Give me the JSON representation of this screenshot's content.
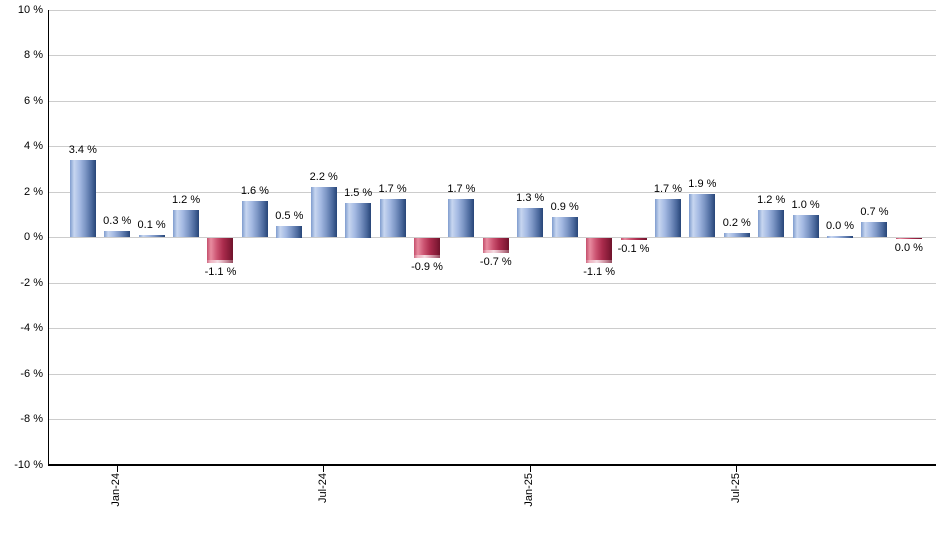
{
  "chart_data": {
    "type": "bar",
    "title": "",
    "xlabel": "",
    "ylabel": "",
    "ylim": [
      -10,
      10
    ],
    "grid": true,
    "legend": "none",
    "y_ticks": [
      {
        "value": 10,
        "label": "10 %"
      },
      {
        "value": 8,
        "label": "8 %"
      },
      {
        "value": 6,
        "label": "6 %"
      },
      {
        "value": 4,
        "label": "4 %"
      },
      {
        "value": 2,
        "label": "2 %"
      },
      {
        "value": 0,
        "label": "0 %"
      },
      {
        "value": -2,
        "label": "-2 %"
      },
      {
        "value": -4,
        "label": "-4 %"
      },
      {
        "value": -6,
        "label": "-6 %"
      },
      {
        "value": -8,
        "label": "-8 %"
      },
      {
        "value": -10,
        "label": "-10 %"
      }
    ],
    "x_axis_ticks": [
      {
        "bar_index": 1,
        "label": "Jan-24"
      },
      {
        "bar_index": 7,
        "label": "Jul-24"
      },
      {
        "bar_index": 13,
        "label": "Jan-25"
      },
      {
        "bar_index": 19,
        "label": "Jul-25"
      }
    ],
    "bars": [
      {
        "value": 3.4,
        "label": "3.4 %",
        "sign": "positive"
      },
      {
        "value": 0.3,
        "label": "0.3 %",
        "sign": "positive"
      },
      {
        "value": 0.1,
        "label": "0.1 %",
        "sign": "positive"
      },
      {
        "value": 1.2,
        "label": "1.2 %",
        "sign": "positive"
      },
      {
        "value": -1.1,
        "label": "-1.1 %",
        "sign": "negative"
      },
      {
        "value": 1.6,
        "label": "1.6 %",
        "sign": "positive"
      },
      {
        "value": 0.5,
        "label": "0.5 %",
        "sign": "positive"
      },
      {
        "value": 2.2,
        "label": "2.2 %",
        "sign": "positive"
      },
      {
        "value": 1.5,
        "label": "1.5 %",
        "sign": "positive"
      },
      {
        "value": 1.7,
        "label": "1.7 %",
        "sign": "positive"
      },
      {
        "value": -0.9,
        "label": "-0.9 %",
        "sign": "negative"
      },
      {
        "value": 1.7,
        "label": "1.7 %",
        "sign": "positive"
      },
      {
        "value": -0.7,
        "label": "-0.7 %",
        "sign": "negative"
      },
      {
        "value": 1.3,
        "label": "1.3 %",
        "sign": "positive"
      },
      {
        "value": 0.9,
        "label": "0.9 %",
        "sign": "positive"
      },
      {
        "value": -1.1,
        "label": "-1.1 %",
        "sign": "negative"
      },
      {
        "value": -0.1,
        "label": "-0.1 %",
        "sign": "negative"
      },
      {
        "value": 1.7,
        "label": "1.7 %",
        "sign": "positive"
      },
      {
        "value": 1.9,
        "label": "1.9 %",
        "sign": "positive"
      },
      {
        "value": 0.2,
        "label": "0.2 %",
        "sign": "positive"
      },
      {
        "value": 1.2,
        "label": "1.2 %",
        "sign": "positive"
      },
      {
        "value": 1.0,
        "label": "1.0 %",
        "sign": "positive"
      },
      {
        "value": 0.0,
        "label": "0.0 %",
        "sign": "positive"
      },
      {
        "value": 0.7,
        "label": "0.7 %",
        "sign": "positive"
      },
      {
        "value": 0.0,
        "label": "0.0 %",
        "sign": "negative"
      }
    ],
    "colors": {
      "gridline": "#cccccc",
      "axis": "#000000",
      "label_text": "#000000",
      "positive_gradient": [
        [
          "#7f9cce",
          0
        ],
        [
          "#c7d6f0",
          16
        ],
        [
          "#a4b9e2",
          38
        ],
        [
          "#7b95c4",
          60
        ],
        [
          "#4d6b9f",
          82
        ],
        [
          "#274577",
          100
        ]
      ],
      "negative_gradient": [
        [
          "#c44e6b",
          0
        ],
        [
          "#e88ca0",
          15
        ],
        [
          "#cc5472",
          38
        ],
        [
          "#ab2c4d",
          62
        ],
        [
          "#8a1d3a",
          84
        ],
        [
          "#6e132b",
          100
        ]
      ]
    }
  }
}
